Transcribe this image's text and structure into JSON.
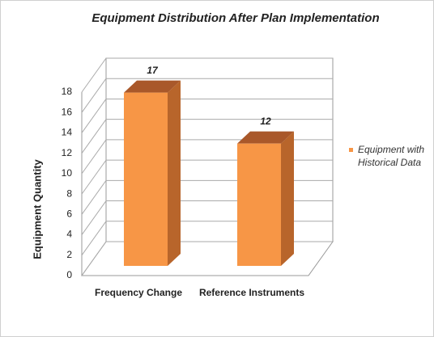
{
  "chart_data": {
    "type": "bar3d",
    "title": "Equipment Distribution After Plan Implementation",
    "y_label": "Equipment Quantity",
    "categories": [
      "Frequency Change",
      "Reference Instruments"
    ],
    "series": [
      {
        "name": "Equipment with Historical Data",
        "color": "#f79646",
        "values": [
          17,
          12
        ]
      }
    ],
    "ylim": [
      0,
      18
    ],
    "yticks": [
      0,
      2,
      4,
      6,
      8,
      10,
      12,
      14,
      16,
      18
    ],
    "grid": true,
    "legend": "right"
  }
}
